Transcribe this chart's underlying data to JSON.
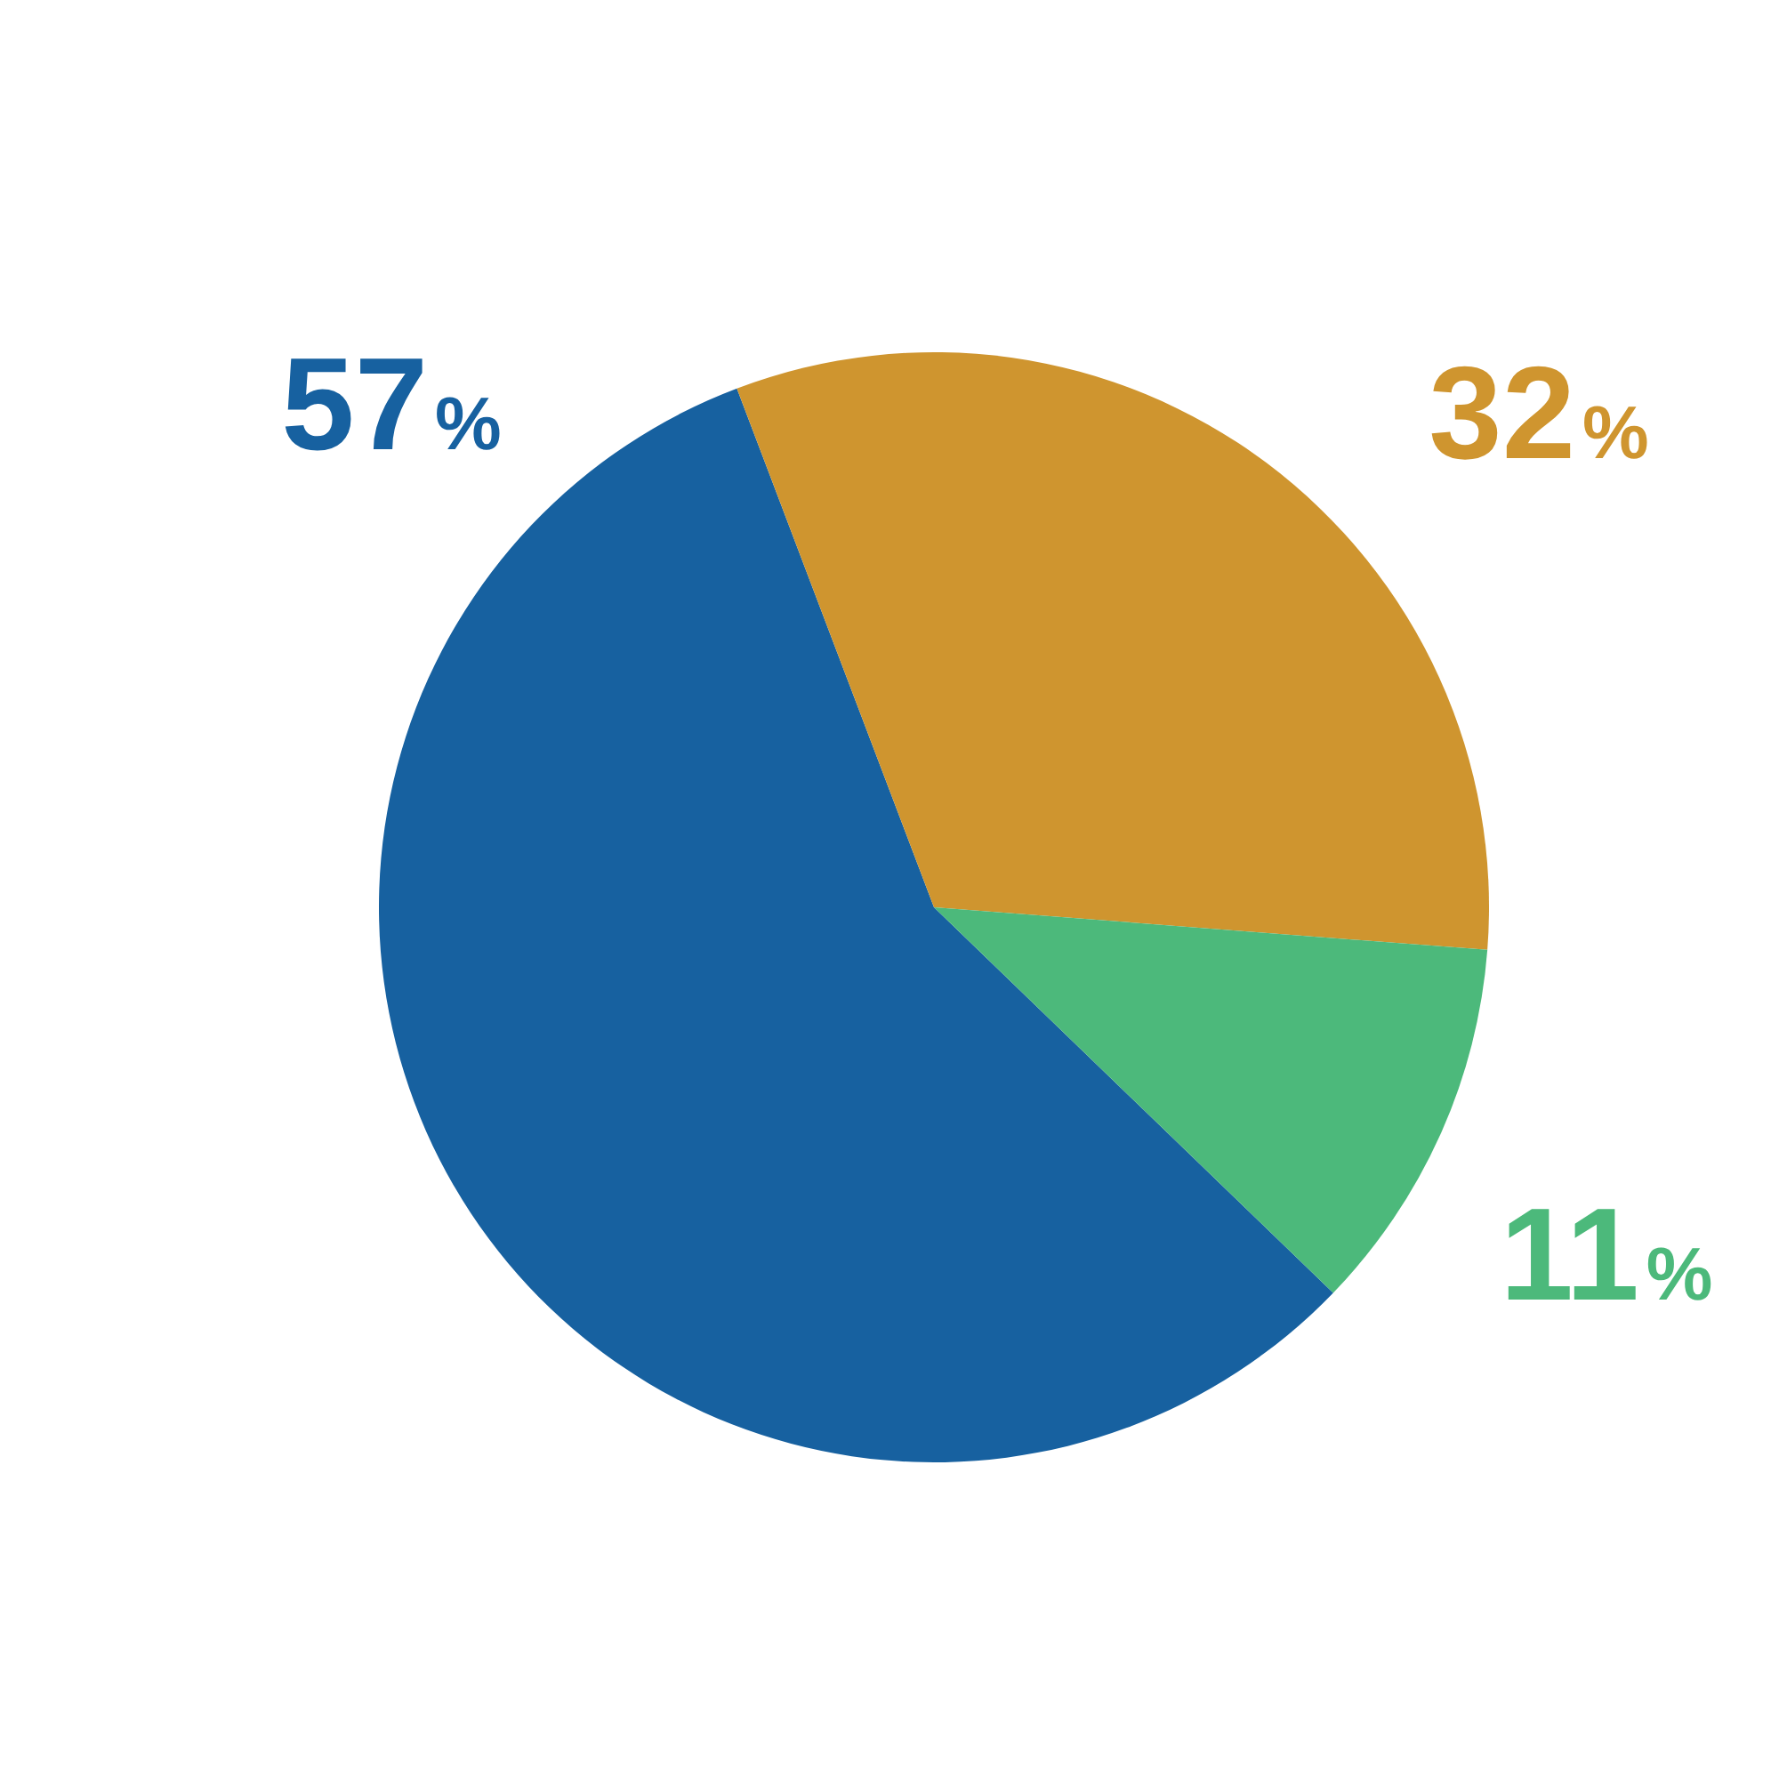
{
  "chart_data": {
    "type": "pie",
    "categories": [
      null,
      null,
      null
    ],
    "values": [
      57,
      32,
      11
    ],
    "colors": [
      "#1761a0",
      "#cf952f",
      "#4cb97b"
    ],
    "value_labels": [
      "57%",
      "32%",
      "11%"
    ]
  }
}
